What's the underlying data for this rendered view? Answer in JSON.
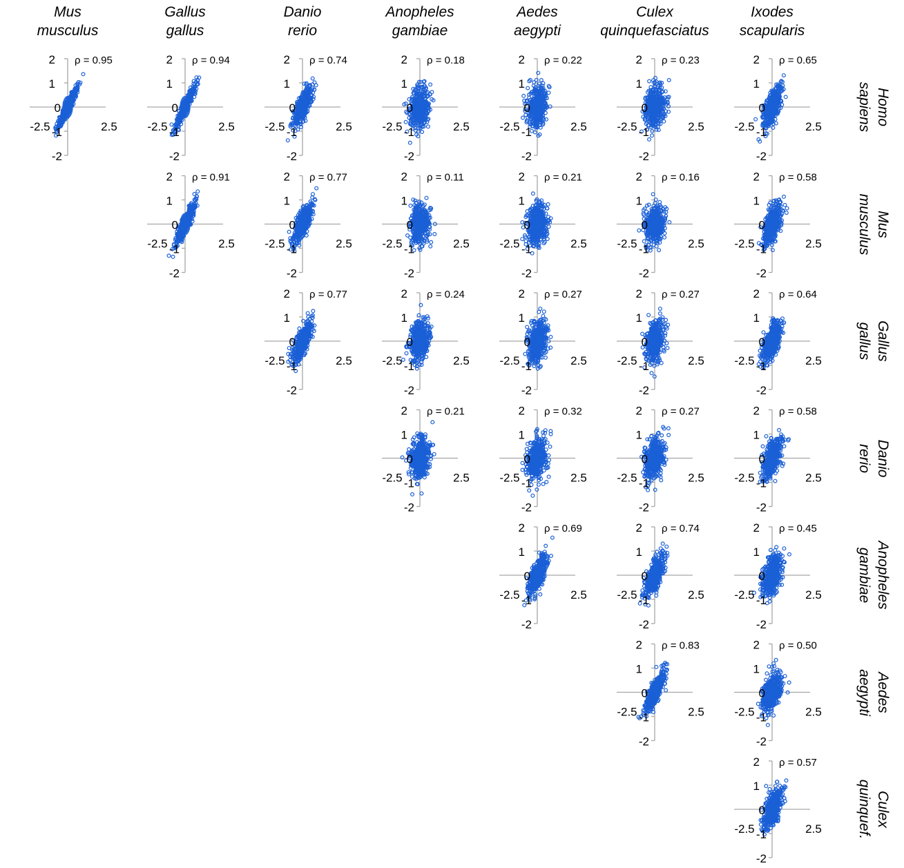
{
  "columns": [
    {
      "line1": "Mus",
      "line2": "musculus"
    },
    {
      "line1": "Gallus",
      "line2": "gallus"
    },
    {
      "line1": "Danio",
      "line2": "rerio"
    },
    {
      "line1": "Anopheles",
      "line2": "gambiae"
    },
    {
      "line1": "Aedes",
      "line2": "aegypti"
    },
    {
      "line1": "Culex",
      "line2": "quinquefasciatus"
    },
    {
      "line1": "Ixodes",
      "line2": "scapularis"
    }
  ],
  "rows": [
    {
      "line1": "Homo",
      "line2": "sapiens"
    },
    {
      "line1": "Mus",
      "line2": "musculus"
    },
    {
      "line1": "Gallus",
      "line2": "gallus"
    },
    {
      "line1": "Danio",
      "line2": "rerio"
    },
    {
      "line1": "Anopheles",
      "line2": "gambiae"
    },
    {
      "line1": "Aedes",
      "line2": "aegypti"
    },
    {
      "line1": "Culex",
      "line2": "quinquef."
    }
  ],
  "colors": {
    "points": "#1a5fd6",
    "axis": "#a6a6a6",
    "text": "#000000"
  },
  "chart_data": {
    "type": "scatter",
    "layout": "upper-triangular scatter matrix",
    "xlim": [
      -2.5,
      2.5
    ],
    "ylim": [
      -2,
      2
    ],
    "x_ticks": [
      "-2.5",
      "2.5"
    ],
    "y_ticks": [
      "2",
      "1",
      "0",
      "-1",
      "-2"
    ],
    "rho_prefix": "ρ = ",
    "panels": [
      {
        "row": 0,
        "col": 0,
        "rho": "0.95"
      },
      {
        "row": 0,
        "col": 1,
        "rho": "0.94"
      },
      {
        "row": 0,
        "col": 2,
        "rho": "0.74"
      },
      {
        "row": 0,
        "col": 3,
        "rho": "0.18"
      },
      {
        "row": 0,
        "col": 4,
        "rho": "0.22"
      },
      {
        "row": 0,
        "col": 5,
        "rho": "0.23"
      },
      {
        "row": 0,
        "col": 6,
        "rho": "0.65"
      },
      {
        "row": 1,
        "col": 1,
        "rho": "0.91"
      },
      {
        "row": 1,
        "col": 2,
        "rho": "0.77"
      },
      {
        "row": 1,
        "col": 3,
        "rho": "0.11"
      },
      {
        "row": 1,
        "col": 4,
        "rho": "0.21"
      },
      {
        "row": 1,
        "col": 5,
        "rho": "0.16"
      },
      {
        "row": 1,
        "col": 6,
        "rho": "0.58"
      },
      {
        "row": 2,
        "col": 2,
        "rho": "0.77"
      },
      {
        "row": 2,
        "col": 3,
        "rho": "0.24"
      },
      {
        "row": 2,
        "col": 4,
        "rho": "0.27"
      },
      {
        "row": 2,
        "col": 5,
        "rho": "0.27"
      },
      {
        "row": 2,
        "col": 6,
        "rho": "0.64"
      },
      {
        "row": 3,
        "col": 3,
        "rho": "0.21"
      },
      {
        "row": 3,
        "col": 4,
        "rho": "0.32"
      },
      {
        "row": 3,
        "col": 5,
        "rho": "0.27"
      },
      {
        "row": 3,
        "col": 6,
        "rho": "0.58"
      },
      {
        "row": 4,
        "col": 4,
        "rho": "0.69"
      },
      {
        "row": 4,
        "col": 5,
        "rho": "0.74"
      },
      {
        "row": 4,
        "col": 6,
        "rho": "0.45"
      },
      {
        "row": 5,
        "col": 5,
        "rho": "0.83"
      },
      {
        "row": 5,
        "col": 6,
        "rho": "0.50"
      },
      {
        "row": 6,
        "col": 6,
        "rho": "0.57"
      }
    ]
  }
}
